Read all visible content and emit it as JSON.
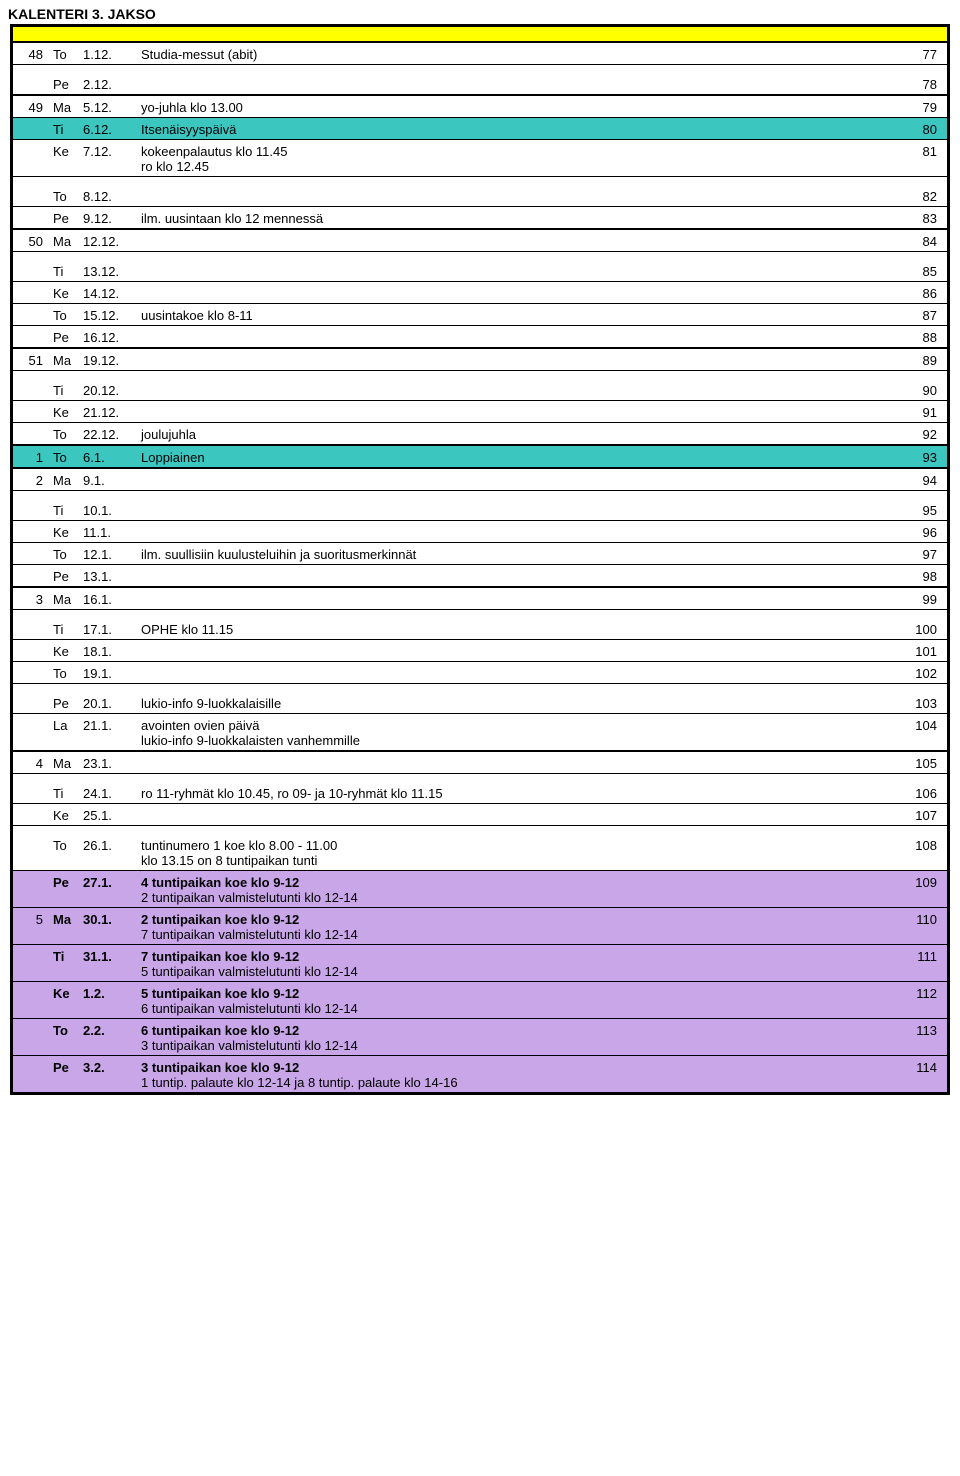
{
  "title": "KALENTERI 3. JAKSO",
  "colors": {
    "yellow": "#ffff00",
    "teal": "#3cc6c0",
    "purple": "#c9a6e8"
  },
  "rows": [
    {
      "wk": "48",
      "day": "To",
      "date": "1.12.",
      "desc": "Studia-messut (abit)",
      "num": "77",
      "thick": false,
      "bg": ""
    },
    {
      "wk": "",
      "day": "Pe",
      "date": "2.12.",
      "desc": "",
      "num": "78",
      "thick": true,
      "bg": ""
    },
    {
      "wk": "49",
      "day": "Ma",
      "date": "5.12.",
      "desc": "yo-juhla klo 13.00",
      "num": "79",
      "thick": false,
      "bg": ""
    },
    {
      "wk": "",
      "day": "Ti",
      "date": "6.12.",
      "desc": "Itsenäisyyspäivä",
      "num": "80",
      "thick": false,
      "bg": "teal"
    },
    {
      "wk": "",
      "day": "Ke",
      "date": "7.12.",
      "desc": "kokeenpalautus klo 11.45",
      "sub": "ro klo 12.45",
      "num": "81",
      "thick": false,
      "bg": ""
    },
    {
      "wk": "",
      "day": "To",
      "date": "8.12.",
      "desc": "",
      "num": "82",
      "thick": false,
      "bg": ""
    },
    {
      "wk": "",
      "day": "Pe",
      "date": "9.12.",
      "desc": "ilm. uusintaan klo 12 mennessä",
      "num": "83",
      "thick": true,
      "bg": ""
    },
    {
      "wk": "50",
      "day": "Ma",
      "date": "12.12.",
      "desc": "",
      "num": "84",
      "thick": false,
      "bg": ""
    },
    {
      "wk": "",
      "day": "Ti",
      "date": "13.12.",
      "desc": "",
      "num": "85",
      "thick": false,
      "bg": ""
    },
    {
      "wk": "",
      "day": "Ke",
      "date": "14.12.",
      "desc": "",
      "num": "86",
      "thick": false,
      "bg": ""
    },
    {
      "wk": "",
      "day": "To",
      "date": "15.12.",
      "desc": "uusintakoe klo 8-11",
      "num": "87",
      "thick": false,
      "bg": ""
    },
    {
      "wk": "",
      "day": "Pe",
      "date": "16.12.",
      "desc": "",
      "num": "88",
      "thick": true,
      "bg": ""
    },
    {
      "wk": "51",
      "day": "Ma",
      "date": "19.12.",
      "desc": "",
      "num": "89",
      "thick": false,
      "bg": ""
    },
    {
      "wk": "",
      "day": "Ti",
      "date": "20.12.",
      "desc": "",
      "num": "90",
      "thick": false,
      "bg": ""
    },
    {
      "wk": "",
      "day": "Ke",
      "date": "21.12.",
      "desc": "",
      "num": "91",
      "thick": false,
      "bg": ""
    },
    {
      "wk": "",
      "day": "To",
      "date": "22.12.",
      "desc": "joulujuhla",
      "num": "92",
      "thick": true,
      "bg": ""
    },
    {
      "wk": "1",
      "day": "To",
      "date": "6.1.",
      "desc": "Loppiainen",
      "num": "93",
      "thick": true,
      "bg": "teal"
    },
    {
      "wk": "2",
      "day": "Ma",
      "date": "9.1.",
      "desc": "",
      "num": "94",
      "thick": false,
      "bg": ""
    },
    {
      "wk": "",
      "day": "Ti",
      "date": "10.1.",
      "desc": "",
      "num": "95",
      "thick": false,
      "bg": ""
    },
    {
      "wk": "",
      "day": "Ke",
      "date": "11.1.",
      "desc": "",
      "num": "96",
      "thick": false,
      "bg": ""
    },
    {
      "wk": "",
      "day": "To",
      "date": "12.1.",
      "desc": "ilm. suullisiin kuulusteluihin ja suoritusmerkinnät",
      "num": "97",
      "thick": false,
      "bg": ""
    },
    {
      "wk": "",
      "day": "Pe",
      "date": "13.1.",
      "desc": "",
      "num": "98",
      "thick": true,
      "bg": ""
    },
    {
      "wk": "3",
      "day": "Ma",
      "date": "16.1.",
      "desc": "",
      "num": "99",
      "thick": false,
      "bg": ""
    },
    {
      "wk": "",
      "day": "Ti",
      "date": "17.1.",
      "desc": "OPHE klo 11.15",
      "num": "100",
      "thick": false,
      "bg": ""
    },
    {
      "wk": "",
      "day": "Ke",
      "date": "18.1.",
      "desc": "",
      "num": "101",
      "thick": false,
      "bg": ""
    },
    {
      "wk": "",
      "day": "To",
      "date": "19.1.",
      "desc": "",
      "num": "102",
      "thick": false,
      "bg": ""
    },
    {
      "wk": "",
      "day": "Pe",
      "date": "20.1.",
      "desc": "lukio-info 9-luokkalaisille",
      "num": "103",
      "thick": false,
      "bg": ""
    },
    {
      "wk": "",
      "day": "La",
      "date": "21.1.",
      "desc": "avointen ovien päivä",
      "sub": "lukio-info 9-luokkalaisten vanhemmille",
      "num": "104",
      "thick": true,
      "bg": ""
    },
    {
      "wk": "4",
      "day": "Ma",
      "date": "23.1.",
      "desc": "",
      "num": "105",
      "thick": false,
      "bg": ""
    },
    {
      "wk": "",
      "day": "Ti",
      "date": "24.1.",
      "desc": "ro 11-ryhmät klo 10.45, ro 09- ja 10-ryhmät klo 11.15",
      "num": "106",
      "thick": false,
      "bg": ""
    },
    {
      "wk": "",
      "day": "Ke",
      "date": "25.1.",
      "desc": "",
      "num": "107",
      "thick": false,
      "bg": ""
    },
    {
      "wk": "",
      "day": "To",
      "date": "26.1.",
      "desc": "tuntinumero 1 koe klo 8.00 - 11.00",
      "sub": "klo 13.15 on 8 tuntipaikan tunti",
      "num": "108",
      "thick": false,
      "bg": ""
    },
    {
      "wk": "",
      "day": "Pe",
      "date": "27.1.",
      "desc": "4 tuntipaikan koe klo 9-12",
      "sub": "2 tuntipaikan valmistelutunti klo 12-14",
      "num": "109",
      "thick": false,
      "bg": "purple",
      "bold": true
    },
    {
      "wk": "5",
      "day": "Ma",
      "date": "30.1.",
      "desc": "2 tuntipaikan koe klo 9-12",
      "sub": "7 tuntipaikan valmistelutunti klo 12-14",
      "num": "110",
      "thick": false,
      "bg": "purple",
      "bold": true
    },
    {
      "wk": "",
      "day": "Ti",
      "date": "31.1.",
      "desc": "7 tuntipaikan koe klo 9-12",
      "sub": "5 tuntipaikan valmistelutunti klo 12-14",
      "num": "111",
      "thick": false,
      "bg": "purple",
      "bold": true
    },
    {
      "wk": "",
      "day": "Ke",
      "date": "1.2.",
      "desc": "5 tuntipaikan koe klo 9-12",
      "sub": "6 tuntipaikan valmistelutunti klo 12-14",
      "num": "112",
      "thick": false,
      "bg": "purple",
      "bold": true
    },
    {
      "wk": "",
      "day": "To",
      "date": "2.2.",
      "desc": "6 tuntipaikan koe klo 9-12",
      "sub": "3 tuntipaikan valmistelutunti klo 12-14",
      "num": "113",
      "thick": false,
      "bg": "purple",
      "bold": true
    },
    {
      "wk": "",
      "day": "Pe",
      "date": "3.2.",
      "desc": "3 tuntipaikan koe klo 9-12",
      "sub": "1 tuntip. palaute klo 12-14 ja 8 tuntip. palaute klo 14-16",
      "num": "114",
      "thick": false,
      "bg": "purple",
      "bold": true,
      "last": true
    }
  ]
}
